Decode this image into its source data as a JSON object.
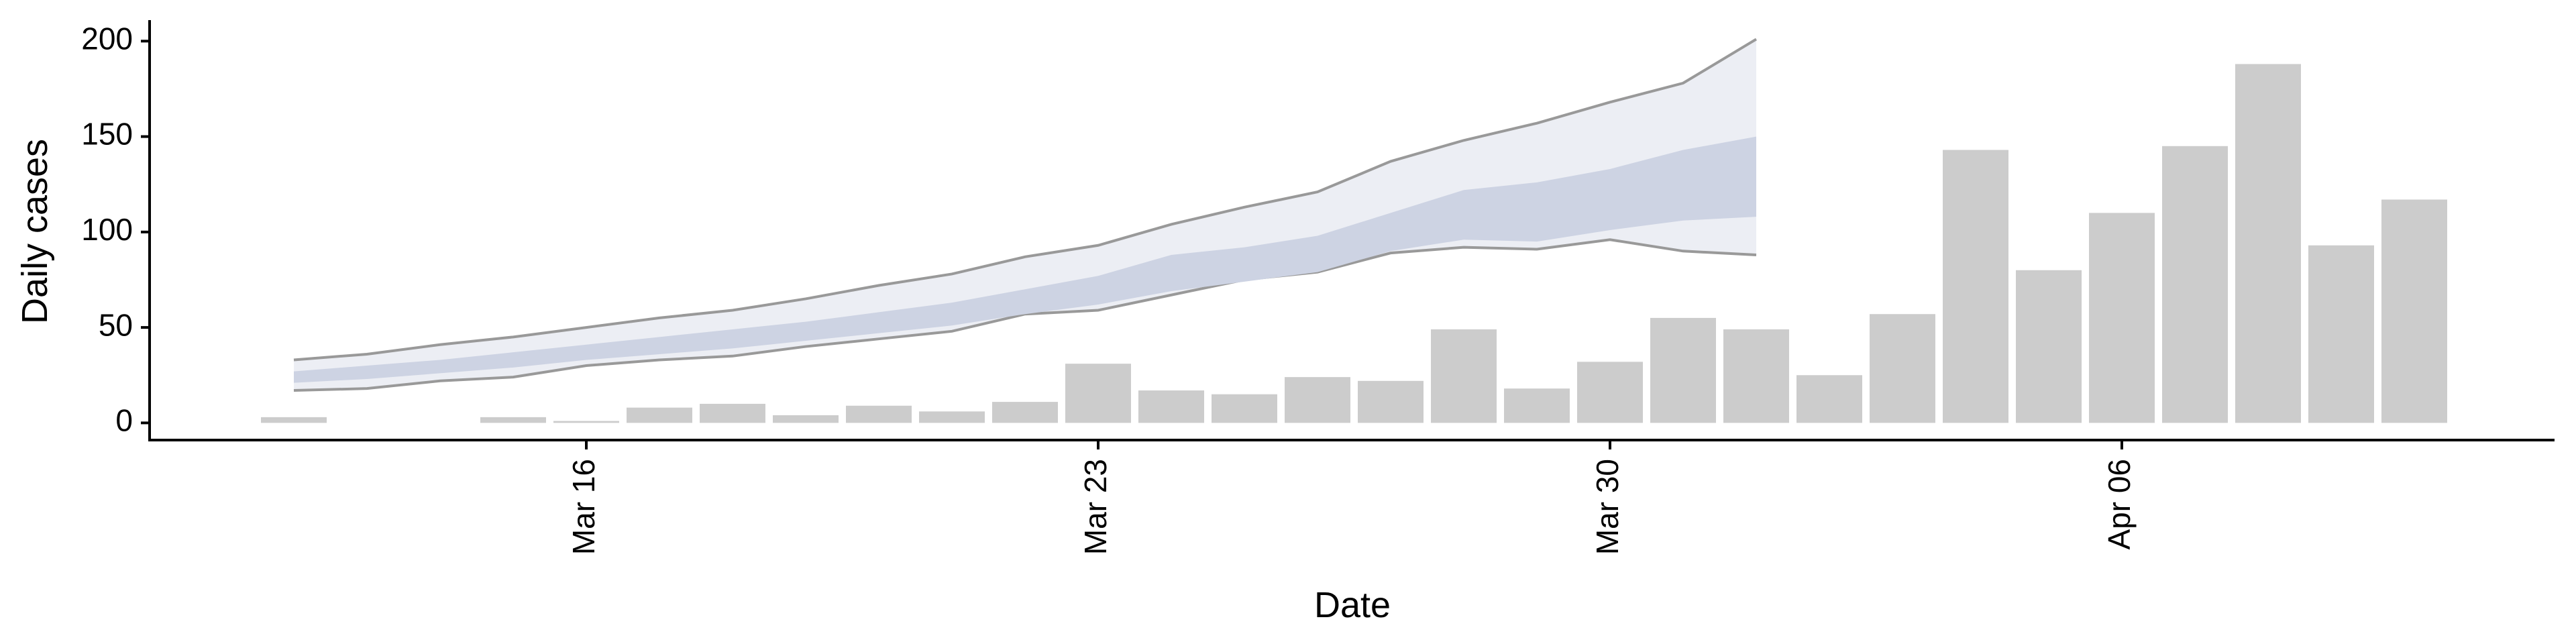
{
  "chart_data": {
    "type": "bar",
    "xlabel": "Date",
    "ylabel": "Daily cases",
    "x": [
      "Mar 12",
      "Mar 13",
      "Mar 14",
      "Mar 15",
      "Mar 16",
      "Mar 17",
      "Mar 18",
      "Mar 19",
      "Mar 20",
      "Mar 21",
      "Mar 22",
      "Mar 23",
      "Mar 24",
      "Mar 25",
      "Mar 26",
      "Mar 27",
      "Mar 28",
      "Mar 29",
      "Mar 30",
      "Mar 31",
      "Apr 01",
      "Apr 02",
      "Apr 03",
      "Apr 04",
      "Apr 05",
      "Apr 06",
      "Apr 07",
      "Apr 08",
      "Apr 09",
      "Apr 10"
    ],
    "xticks": [
      "Mar 16",
      "Mar 23",
      "Mar 30",
      "Apr 06"
    ],
    "values": [
      3,
      0,
      0,
      3,
      1,
      8,
      10,
      4,
      9,
      6,
      11,
      31,
      17,
      15,
      24,
      22,
      49,
      18,
      32,
      55,
      49,
      25,
      57,
      143,
      80,
      110,
      145,
      188,
      93,
      117
    ],
    "color": "#cccccc",
    "bands": [
      {
        "color": "#eceef4",
        "line_color": "#999999",
        "lower": [
          17,
          18,
          22,
          24,
          30,
          33,
          35,
          40,
          44,
          48,
          57,
          59,
          67,
          75,
          79,
          89,
          92,
          91,
          96,
          90,
          88,
          null,
          null,
          null,
          null,
          null,
          null,
          null,
          null,
          null
        ],
        "upper": [
          33,
          36,
          41,
          45,
          50,
          55,
          59,
          65,
          72,
          78,
          87,
          93,
          104,
          113,
          121,
          137,
          148,
          157,
          168,
          178,
          201,
          null,
          null,
          null,
          null,
          null,
          null,
          null,
          null,
          null
        ]
      },
      {
        "color": "#cdd3e3",
        "lower": [
          21,
          23,
          26,
          29,
          33,
          36,
          39,
          43,
          47,
          51,
          57,
          62,
          69,
          74,
          79,
          90,
          96,
          95,
          101,
          106,
          108,
          null,
          null,
          null,
          null,
          null,
          null,
          null,
          null,
          null
        ],
        "upper": [
          27,
          30,
          33,
          37,
          41,
          45,
          49,
          53,
          58,
          63,
          70,
          77,
          88,
          92,
          98,
          110,
          122,
          126,
          133,
          143,
          150,
          null,
          null,
          null,
          null,
          null,
          null,
          null,
          null,
          null
        ]
      }
    ],
    "ylim": [
      -9,
      211
    ],
    "yticks": [
      0,
      50,
      100,
      150,
      200
    ]
  }
}
